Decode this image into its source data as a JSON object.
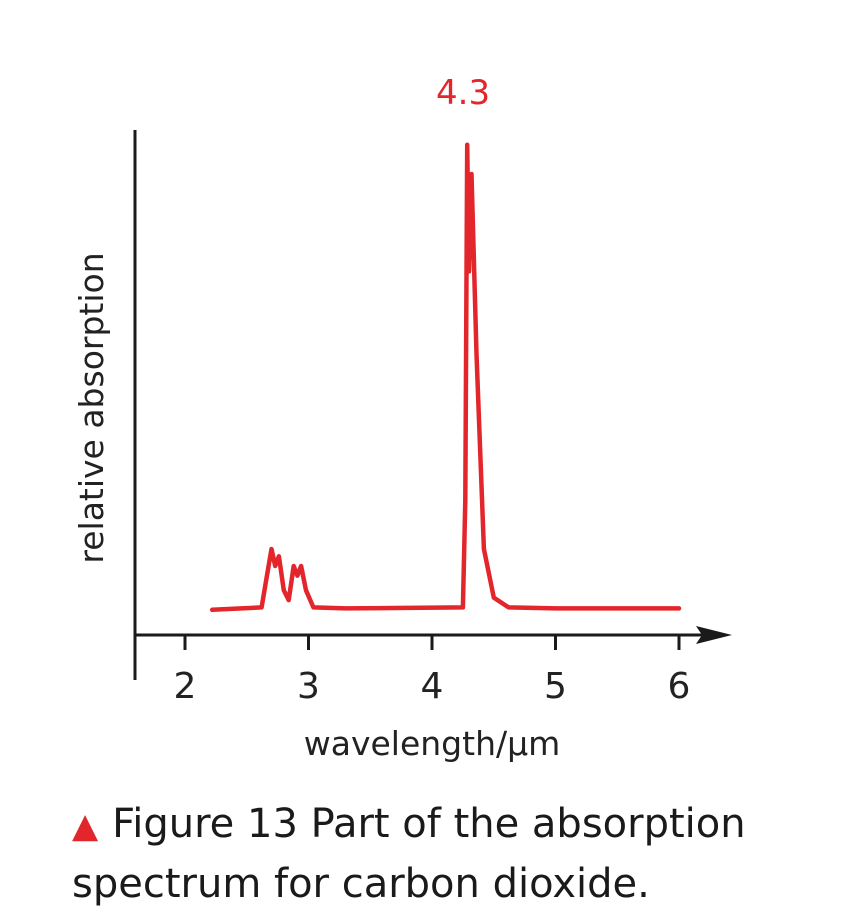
{
  "chart_data": {
    "type": "line",
    "xlabel": "wavelength/µm",
    "ylabel": "relative absorption",
    "xlim": [
      1.6,
      6.4
    ],
    "ylim": [
      0,
      1
    ],
    "x_ticks": [
      2,
      3,
      4,
      5,
      6
    ],
    "grid": false,
    "annotations": [
      {
        "x": 4.3,
        "text": "4.3",
        "color": "#e3262b"
      }
    ],
    "series": [
      {
        "color": "#e3262b",
        "points": [
          [
            2.22,
            0.025
          ],
          [
            2.62,
            0.03
          ],
          [
            2.66,
            0.09
          ],
          [
            2.7,
            0.15
          ],
          [
            2.73,
            0.115
          ],
          [
            2.76,
            0.135
          ],
          [
            2.8,
            0.065
          ],
          [
            2.84,
            0.045
          ],
          [
            2.88,
            0.115
          ],
          [
            2.91,
            0.095
          ],
          [
            2.94,
            0.115
          ],
          [
            2.98,
            0.065
          ],
          [
            3.04,
            0.03
          ],
          [
            3.3,
            0.028
          ],
          [
            4.25,
            0.03
          ],
          [
            4.27,
            0.25
          ],
          [
            4.285,
            0.98
          ],
          [
            4.3,
            0.72
          ],
          [
            4.32,
            0.92
          ],
          [
            4.36,
            0.55
          ],
          [
            4.42,
            0.15
          ],
          [
            4.5,
            0.05
          ],
          [
            4.62,
            0.03
          ],
          [
            5.0,
            0.028
          ],
          [
            6.0,
            0.028
          ]
        ]
      }
    ]
  },
  "caption": {
    "marker": "▲",
    "text": "Figure 13 Part of the absorption spectrum for carbon dioxide."
  }
}
